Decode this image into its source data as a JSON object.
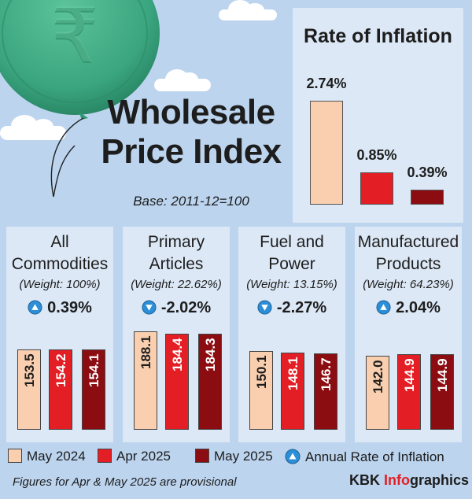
{
  "title_line1": "Wholesale",
  "title_line2": "Price Index",
  "base": "Base: 2011-12=100",
  "colors": {
    "may2024": "#f9cfb0",
    "apr2025": "#e31e24",
    "may2025": "#8b0d12",
    "panel": "#dce8f6",
    "background": "#bcd4ee",
    "up_arrow": "#2b8ed6",
    "balloon": "#3aa57f"
  },
  "icons": {
    "balloon": "rupee-coin-balloon-icon",
    "up": "up-triangle-icon",
    "down": "down-triangle-icon"
  },
  "chart_data": [
    {
      "type": "bar",
      "title": "Rate of Inflation",
      "categories": [
        "May 2024",
        "Apr 2025",
        "May 2025"
      ],
      "values": [
        2.74,
        0.85,
        0.39
      ],
      "value_labels": [
        "2.74%",
        "0.85%",
        "0.39%"
      ],
      "ylim": [
        0,
        2.74
      ]
    },
    {
      "type": "bar",
      "title": "Wholesale Price Index by group",
      "categories": [
        "May 2024",
        "Apr 2025",
        "May 2025"
      ],
      "ylim": [
        0,
        190
      ],
      "groups": [
        {
          "name": "All Commodities",
          "weight": "(Weight: 100%)",
          "rate": "0.39%",
          "direction": "up",
          "values": [
            153.5,
            154.2,
            154.1
          ],
          "labels": [
            "153.5",
            "154.2",
            "154.1"
          ]
        },
        {
          "name": "Primary Articles",
          "weight": "(Weight: 22.62%)",
          "rate": "-2.02%",
          "direction": "down",
          "values": [
            188.1,
            184.4,
            184.3
          ],
          "labels": [
            "188.1",
            "184.4",
            "184.3"
          ]
        },
        {
          "name": "Fuel and Power",
          "weight": "(Weight: 13.15%)",
          "rate": "-2.27%",
          "direction": "down",
          "values": [
            150.1,
            148.1,
            146.7
          ],
          "labels": [
            "150.1",
            "148.1",
            "146.7"
          ]
        },
        {
          "name": "Manufactured Products",
          "weight": "(Weight: 64.23%)",
          "rate": "2.04%",
          "direction": "up",
          "values": [
            142.0,
            144.9,
            144.9
          ],
          "labels": [
            "142.0",
            "144.9",
            "144.9"
          ]
        }
      ]
    }
  ],
  "cards": [
    {
      "title1": "All",
      "title2": "Commodities"
    },
    {
      "title1": "Primary",
      "title2": "Articles"
    },
    {
      "title1": "Fuel and",
      "title2": "Power"
    },
    {
      "title1": "Manufactured",
      "title2": "Products"
    }
  ],
  "legend": {
    "may2024": "May 2024",
    "apr2025": "Apr 2025",
    "may2025": "May 2025",
    "annual_rate": "Annual Rate of Inflation"
  },
  "footnote": "Figures for Apr & May 2025 are provisional",
  "brand": {
    "part1": "KBK ",
    "part2": "Info",
    "part3": "graphics"
  }
}
